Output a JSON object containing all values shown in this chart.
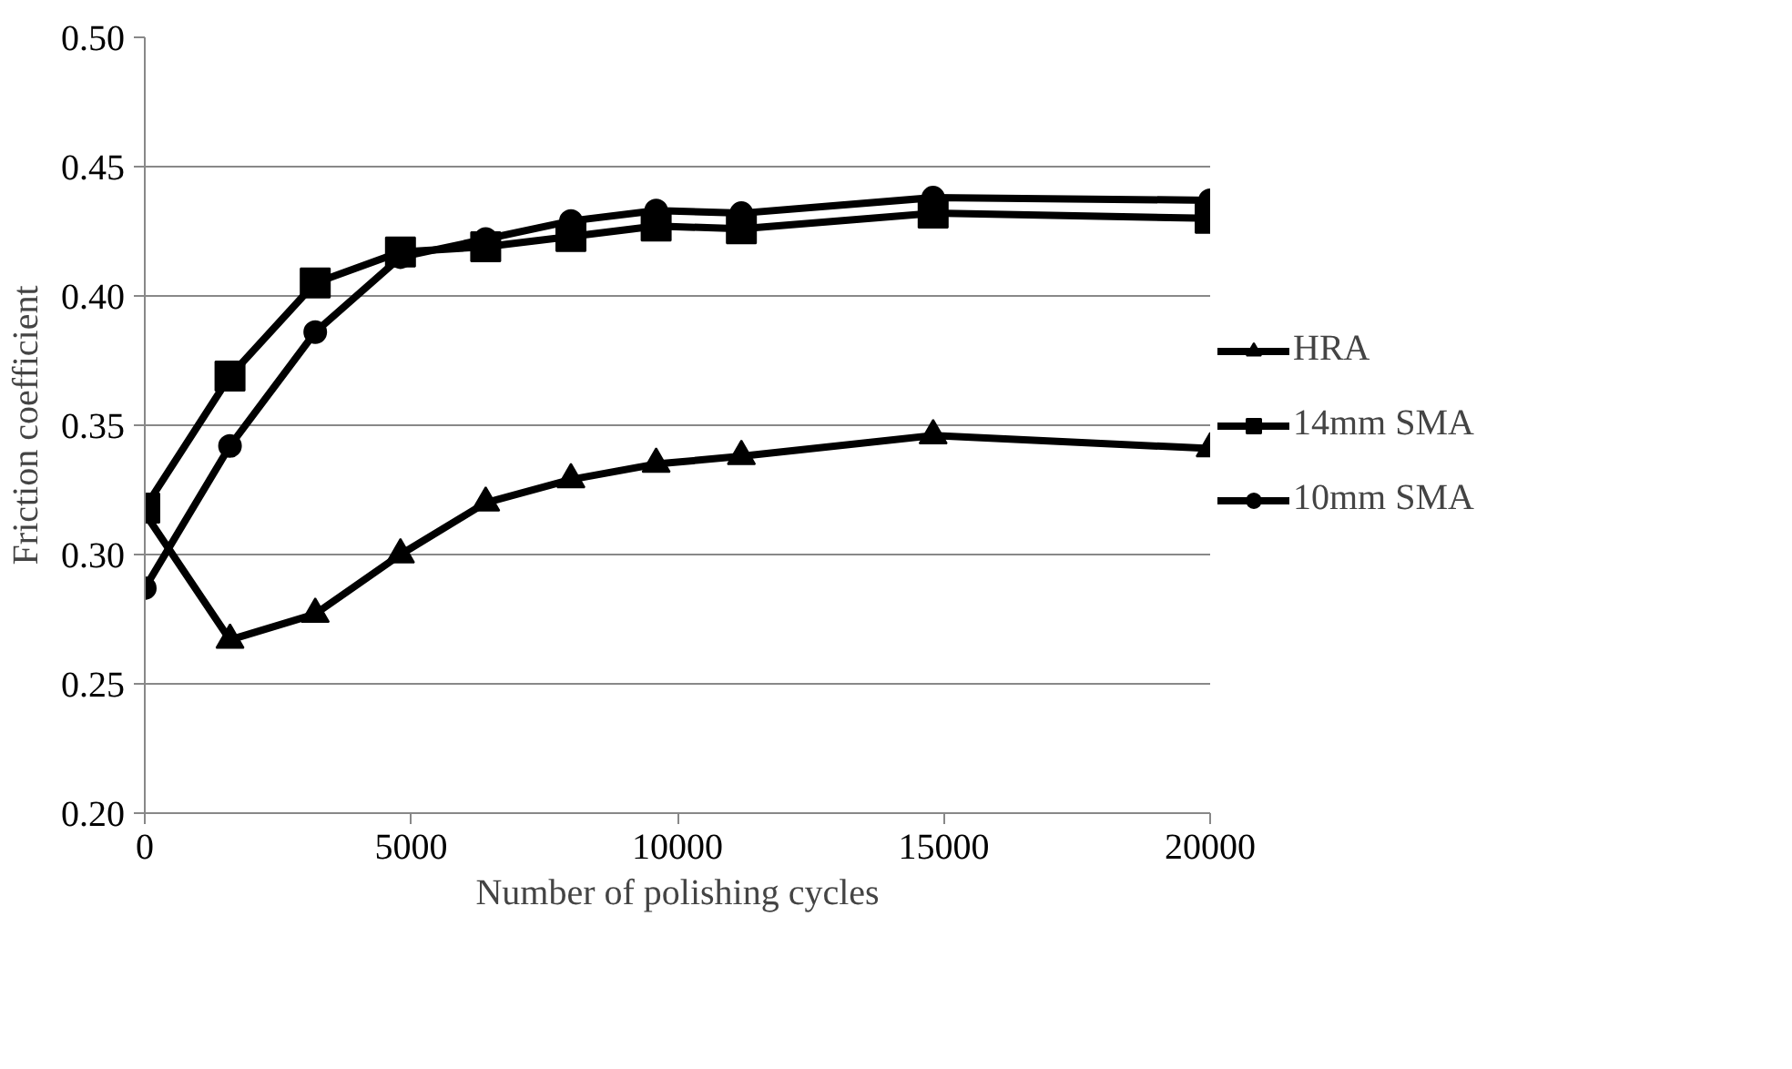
{
  "chart_data": {
    "type": "line",
    "xlabel": "Number of polishing cycles",
    "ylabel": "Friction coefficient",
    "x": [
      0,
      1600,
      3200,
      4800,
      6400,
      8000,
      9600,
      11200,
      14800,
      20000
    ],
    "series": [
      {
        "name": "HRA",
        "color": "#000000",
        "marker": "triangle",
        "values": [
          0.316,
          0.267,
          0.277,
          0.3,
          0.32,
          0.329,
          0.335,
          0.338,
          0.346,
          0.341
        ]
      },
      {
        "name": "14mm SMA",
        "color": "#000000",
        "marker": "square",
        "values": [
          0.318,
          0.369,
          0.405,
          0.417,
          0.419,
          0.423,
          0.427,
          0.426,
          0.432,
          0.43
        ]
      },
      {
        "name": "10mm SMA",
        "color": "#000000",
        "marker": "circle",
        "values": [
          0.287,
          0.342,
          0.386,
          0.415,
          0.422,
          0.429,
          0.433,
          0.432,
          0.438,
          0.437
        ]
      }
    ],
    "xlim": [
      0,
      20000
    ],
    "xticks": [
      0,
      5000,
      10000,
      15000,
      20000
    ],
    "ylim": [
      0.2,
      0.5
    ],
    "yticks": [
      {
        "value": 0.2,
        "label": "0.20"
      },
      {
        "value": 0.25,
        "label": "0.25"
      },
      {
        "value": 0.3,
        "label": "0.30"
      },
      {
        "value": 0.35,
        "label": "0.35"
      },
      {
        "value": 0.4,
        "label": "0.40"
      },
      {
        "value": 0.45,
        "label": "0.45"
      },
      {
        "value": 0.5,
        "label": "0.50"
      }
    ],
    "grid": "y",
    "legend": "right",
    "line_style": "solid"
  }
}
